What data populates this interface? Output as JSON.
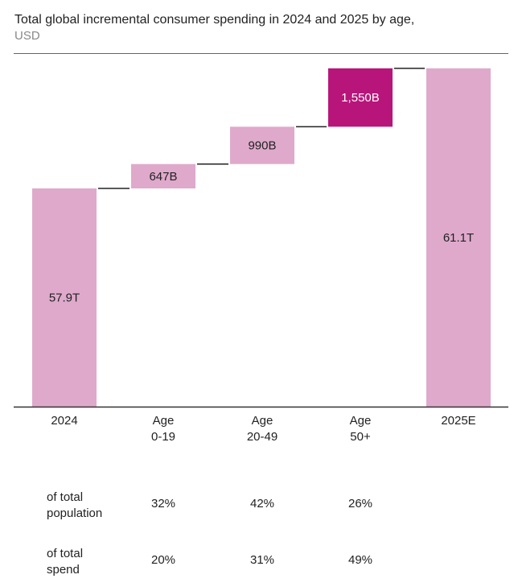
{
  "chart_data": {
    "type": "waterfall",
    "title": "Total global incremental consumer spending in 2024 and 2025 by age,",
    "unit": "USD",
    "categories": [
      {
        "line1": "2024",
        "line2": ""
      },
      {
        "line1": "Age",
        "line2": "0-19"
      },
      {
        "line1": "Age",
        "line2": "20-49"
      },
      {
        "line1": "Age",
        "line2": "50+"
      },
      {
        "line1": "2025E",
        "line2": ""
      }
    ],
    "bars": [
      {
        "kind": "total",
        "value_billions": 57900,
        "label": "57.9T",
        "color": "#dfa9cc",
        "label_color": "#222222"
      },
      {
        "kind": "increment",
        "value_billions": 647,
        "label": "647B",
        "color": "#dfa9cc",
        "label_color": "#222222"
      },
      {
        "kind": "increment",
        "value_billions": 990,
        "label": "990B",
        "color": "#dfa9cc",
        "label_color": "#222222"
      },
      {
        "kind": "increment",
        "value_billions": 1550,
        "label": "1,550B",
        "color": "#b8157a",
        "label_color": "#ffffff"
      },
      {
        "kind": "total",
        "value_billions": 61100,
        "label": "61.1T",
        "color": "#dfa9cc",
        "label_color": "#222222"
      }
    ],
    "table": {
      "rows": [
        {
          "label_line1": "of total",
          "label_line2": "population",
          "values": [
            "32%",
            "42%",
            "26%"
          ]
        },
        {
          "label_line1": "of total",
          "label_line2": "spend",
          "values": [
            "20%",
            "31%",
            "49%"
          ]
        }
      ]
    }
  }
}
